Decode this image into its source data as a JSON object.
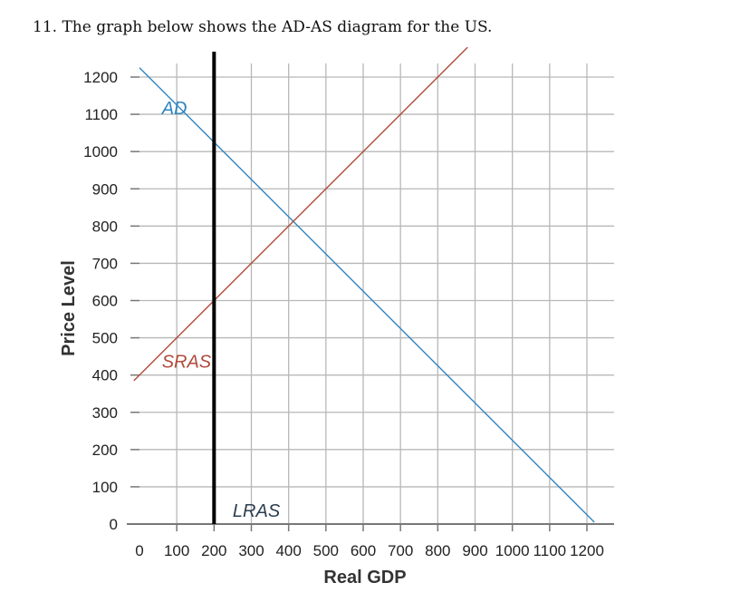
{
  "question": {
    "text": "11. The graph below shows the AD-AS diagram for the US."
  },
  "chart_data": {
    "type": "line",
    "xlabel": "Real GDP",
    "ylabel": "Price Level",
    "xlim": [
      0,
      1200
    ],
    "ylim": [
      0,
      1200
    ],
    "x_ticks": [
      0,
      100,
      200,
      300,
      400,
      500,
      600,
      700,
      800,
      900,
      1000,
      1100,
      1200
    ],
    "y_ticks": [
      0,
      100,
      200,
      300,
      400,
      500,
      600,
      700,
      800,
      900,
      1000,
      1100,
      1200
    ],
    "grid": true,
    "series": [
      {
        "name": "AD",
        "color": "#2f86c0",
        "points": [
          [
            0,
            1225
          ],
          [
            1220,
            5
          ]
        ]
      },
      {
        "name": "SRAS",
        "color": "#b14a3a",
        "points": [
          [
            -15,
            385
          ],
          [
            880,
            1280
          ]
        ]
      },
      {
        "name": "LRAS",
        "color": "#000000",
        "points": [
          [
            200,
            0
          ],
          [
            200,
            1280
          ]
        ]
      }
    ],
    "labels": [
      {
        "text": "AD",
        "x": 60,
        "y": 1100,
        "color": "#2f86c0"
      },
      {
        "text": "SRAS",
        "x": 60,
        "y": 420,
        "color": "#b14a3a"
      },
      {
        "text": "LRAS",
        "x": 250,
        "y": 20,
        "color": "#2c3e50"
      }
    ]
  }
}
